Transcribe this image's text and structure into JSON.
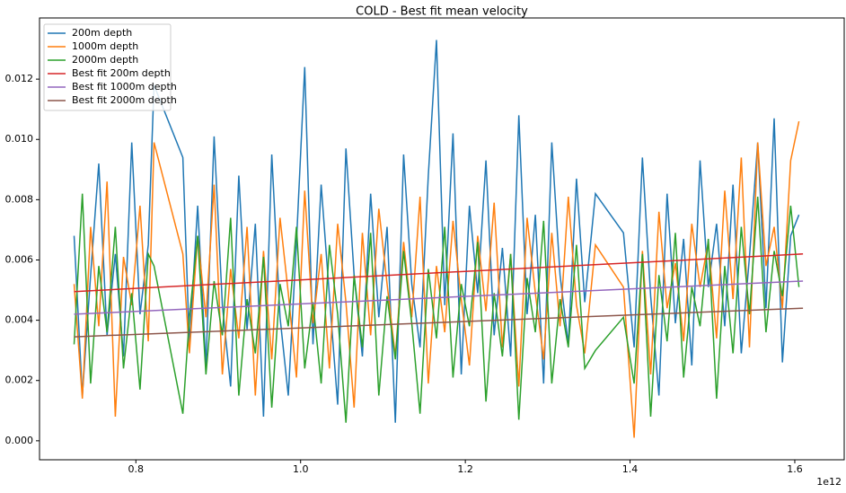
{
  "chart_data": {
    "type": "line",
    "title": "COLD - Best fit mean velocity",
    "x_offset_label": "1e12",
    "xlim": [
      0.683,
      1.66
    ],
    "ylim": [
      -0.00063,
      0.01403
    ],
    "xticks": [
      0.8,
      {
        "value": 1,
        "label": "1.0"
      },
      1.2,
      1.4,
      1.6
    ],
    "yticks": [
      {
        "value": 0,
        "label": "0.000"
      },
      {
        "value": 0.002,
        "label": "0.002"
      },
      {
        "value": 0.004,
        "label": "0.004"
      },
      {
        "value": 0.006,
        "label": "0.006"
      },
      {
        "value": 0.008,
        "label": "0.008"
      },
      {
        "value": 0.01,
        "label": "0.010"
      },
      {
        "value": 0.012,
        "label": "0.012"
      }
    ],
    "legend": "upper left",
    "x": [
      0.725,
      0.735,
      0.745,
      0.755,
      0.765,
      0.775,
      0.785,
      0.795,
      0.805,
      0.815,
      0.822,
      0.857,
      0.865,
      0.875,
      0.885,
      0.895,
      0.905,
      0.915,
      0.925,
      0.935,
      0.945,
      0.955,
      0.965,
      0.975,
      0.985,
      0.995,
      1.005,
      1.015,
      1.025,
      1.035,
      1.045,
      1.055,
      1.065,
      1.075,
      1.085,
      1.095,
      1.105,
      1.115,
      1.125,
      1.135,
      1.145,
      1.155,
      1.165,
      1.175,
      1.185,
      1.195,
      1.205,
      1.215,
      1.225,
      1.235,
      1.245,
      1.255,
      1.265,
      1.275,
      1.285,
      1.295,
      1.305,
      1.315,
      1.325,
      1.335,
      1.345,
      1.358,
      1.392,
      1.405,
      1.415,
      1.425,
      1.435,
      1.445,
      1.455,
      1.465,
      1.475,
      1.485,
      1.495,
      1.505,
      1.515,
      1.525,
      1.535,
      1.545,
      1.555,
      1.565,
      1.575,
      1.585,
      1.595,
      1.605
    ],
    "series": [
      {
        "name": "200m depth",
        "color": "#1f77b4",
        "values": [
          0.0068,
          0.0015,
          0.0055,
          0.0092,
          0.0035,
          0.0062,
          0.0028,
          0.0099,
          0.0042,
          0.0065,
          0.0118,
          0.0094,
          0.0032,
          0.0078,
          0.0025,
          0.0101,
          0.0045,
          0.0018,
          0.0088,
          0.0037,
          0.0072,
          0.0008,
          0.0095,
          0.0041,
          0.0015,
          0.0066,
          0.0124,
          0.0032,
          0.0085,
          0.0048,
          0.0012,
          0.0097,
          0.0055,
          0.0028,
          0.0082,
          0.0041,
          0.0071,
          0.0006,
          0.0095,
          0.0052,
          0.0031,
          0.0088,
          0.0133,
          0.0045,
          0.0102,
          0.0022,
          0.0078,
          0.0049,
          0.0093,
          0.0035,
          0.0064,
          0.0028,
          0.0108,
          0.0042,
          0.0075,
          0.0019,
          0.0099,
          0.0055,
          0.0032,
          0.0087,
          0.0046,
          0.0082,
          0.0069,
          0.0031,
          0.0094,
          0.0048,
          0.0015,
          0.0082,
          0.0039,
          0.0067,
          0.0025,
          0.0093,
          0.0051,
          0.0072,
          0.0038,
          0.0085,
          0.0029,
          0.0061,
          0.0099,
          0.0044,
          0.0107,
          0.0026,
          0.0068,
          0.0075
        ]
      },
      {
        "name": "1000m depth",
        "color": "#ff7f0e",
        "values": [
          0.0052,
          0.0014,
          0.0071,
          0.0038,
          0.0086,
          0.0008,
          0.0061,
          0.0045,
          0.0078,
          0.0033,
          0.0099,
          0.0062,
          0.0029,
          0.0068,
          0.0041,
          0.0085,
          0.0022,
          0.0057,
          0.0034,
          0.0071,
          0.0015,
          0.0063,
          0.0027,
          0.0074,
          0.0049,
          0.0021,
          0.0083,
          0.0039,
          0.0062,
          0.0024,
          0.0072,
          0.0046,
          0.0011,
          0.0069,
          0.0035,
          0.0077,
          0.0052,
          0.0028,
          0.0066,
          0.0041,
          0.0081,
          0.0019,
          0.0058,
          0.0036,
          0.0073,
          0.0047,
          0.0025,
          0.0068,
          0.0043,
          0.0079,
          0.0031,
          0.0062,
          0.0018,
          0.0074,
          0.0049,
          0.0027,
          0.0069,
          0.0038,
          0.0081,
          0.0045,
          0.0029,
          0.0065,
          0.0051,
          0.0001,
          0.0063,
          0.0022,
          0.0076,
          0.0044,
          0.0059,
          0.0033,
          0.0072,
          0.0051,
          0.0066,
          0.0034,
          0.0083,
          0.0047,
          0.0094,
          0.0031,
          0.0099,
          0.0058,
          0.0071,
          0.0044,
          0.0093,
          0.0106
        ]
      },
      {
        "name": "2000m depth",
        "color": "#2ca02c",
        "values": [
          0.0032,
          0.0082,
          0.0019,
          0.0058,
          0.0036,
          0.0071,
          0.0024,
          0.0049,
          0.0017,
          0.0062,
          0.0058,
          0.0009,
          0.0041,
          0.0068,
          0.0022,
          0.0053,
          0.0035,
          0.0074,
          0.0015,
          0.0047,
          0.0029,
          0.0061,
          0.0011,
          0.0052,
          0.0038,
          0.0071,
          0.0024,
          0.0046,
          0.0019,
          0.0065,
          0.0042,
          0.0006,
          0.0055,
          0.0031,
          0.0069,
          0.0015,
          0.0048,
          0.0027,
          0.0063,
          0.0039,
          0.0009,
          0.0057,
          0.0034,
          0.0071,
          0.0021,
          0.0052,
          0.0038,
          0.0066,
          0.0013,
          0.0049,
          0.0028,
          0.0062,
          0.0007,
          0.0054,
          0.0036,
          0.0073,
          0.0019,
          0.0047,
          0.0031,
          0.0065,
          0.0024,
          0.003,
          0.0041,
          0.0019,
          0.0062,
          0.0008,
          0.0055,
          0.0033,
          0.0069,
          0.0021,
          0.0051,
          0.0038,
          0.0067,
          0.0014,
          0.0058,
          0.0029,
          0.0071,
          0.0042,
          0.0081,
          0.0036,
          0.0063,
          0.0048,
          0.0078,
          0.0051
        ]
      },
      {
        "name": "Best fit 200m depth",
        "color": "#d62728",
        "x": [
          0.725,
          1.61
        ],
        "values": [
          0.00495,
          0.0062
        ]
      },
      {
        "name": "Best fit 1000m depth",
        "color": "#9467bd",
        "x": [
          0.725,
          1.61
        ],
        "values": [
          0.0042,
          0.0053
        ]
      },
      {
        "name": "Best fit 2000m depth",
        "color": "#8c564b",
        "x": [
          0.725,
          1.61
        ],
        "values": [
          0.00345,
          0.0044
        ]
      }
    ]
  }
}
